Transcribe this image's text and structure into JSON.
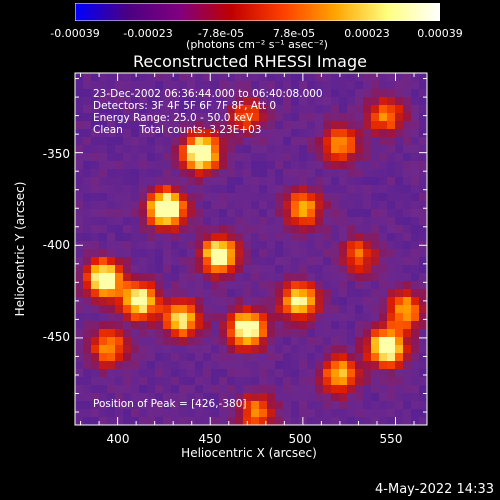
{
  "colorbar": {
    "ticks": [
      "-0.00039",
      "-0.00023",
      "-7.8e-05",
      "7.8e-05",
      "0.00023",
      "0.00039"
    ],
    "unit": "(photons cm⁻² s⁻¹ asec⁻²)",
    "colors": [
      "#0000ff",
      "#4b0082",
      "#800080",
      "#c00000",
      "#ff4000",
      "#ffa500",
      "#ffff80",
      "#ffffff"
    ]
  },
  "chart_data": {
    "type": "heatmap",
    "title": "Reconstructed RHESSI Image",
    "xlabel": "Heliocentric X (arcsec)",
    "ylabel": "Heliocentric Y (arcsec)",
    "xlim": [
      377,
      567
    ],
    "ylim": [
      -497,
      -307
    ],
    "x_ticks": [
      "400",
      "450",
      "500",
      "550"
    ],
    "y_ticks": [
      "-350",
      "-400",
      "-450"
    ],
    "annotations": [
      "23-Dec-2002 06:36:44.000 to 06:40:08.000",
      "Detectors: 3F 4F 5F 6F 7F 8F, Att 0",
      "Energy Range: 25.0 - 50.0 keV",
      "Clean     Total counts: 3.23E+03"
    ],
    "peak_label": "Position of Peak = [426,-380]",
    "peak": [
      426,
      -380
    ],
    "blobs": [
      {
        "x": 426,
        "y": -380,
        "v": 1.0
      },
      {
        "x": 445,
        "y": -350,
        "v": 0.95
      },
      {
        "x": 393,
        "y": -418,
        "v": 0.9
      },
      {
        "x": 412,
        "y": -430,
        "v": 0.8
      },
      {
        "x": 455,
        "y": -405,
        "v": 0.85
      },
      {
        "x": 470,
        "y": -445,
        "v": 0.9
      },
      {
        "x": 498,
        "y": -430,
        "v": 0.75
      },
      {
        "x": 435,
        "y": -440,
        "v": 0.7
      },
      {
        "x": 545,
        "y": -455,
        "v": 0.9
      },
      {
        "x": 520,
        "y": -470,
        "v": 0.65
      },
      {
        "x": 555,
        "y": -435,
        "v": 0.6
      },
      {
        "x": 500,
        "y": -380,
        "v": 0.6
      },
      {
        "x": 520,
        "y": -345,
        "v": 0.55
      },
      {
        "x": 545,
        "y": -330,
        "v": 0.5
      },
      {
        "x": 395,
        "y": -455,
        "v": 0.55
      },
      {
        "x": 475,
        "y": -490,
        "v": 0.5
      },
      {
        "x": 530,
        "y": -405,
        "v": 0.45
      },
      {
        "x": 470,
        "y": -330,
        "v": 0.4
      }
    ]
  },
  "footer": {
    "date": "4-May-2022 14:33"
  }
}
